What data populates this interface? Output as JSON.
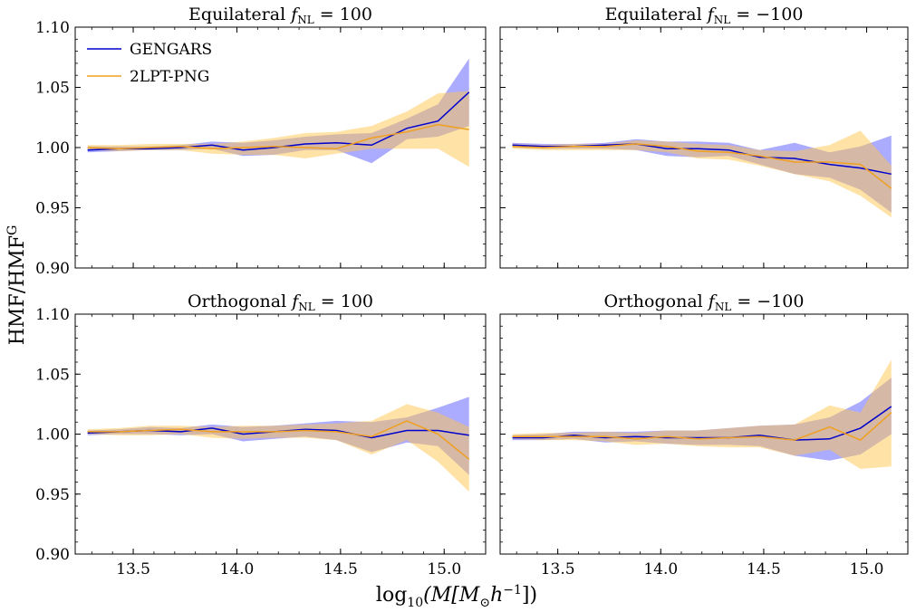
{
  "figure": {
    "ylabel": "HMF/HMF",
    "ylabel_sup": "G",
    "xlabel_prefix": "log",
    "xlabel_sub": "10",
    "xlabel_open": "(M[M",
    "xlabel_sun": "⊙",
    "xlabel_mid": "h",
    "xlabel_exp": "−1",
    "xlabel_close": "])"
  },
  "colors": {
    "gengars": "#0000cc",
    "gengars_band": "#6666ff",
    "lpt": "#f0a020",
    "lpt_band": "#ffc64d"
  },
  "legend": [
    {
      "name": "GENGARS",
      "color": "#0000cc"
    },
    {
      "name": "2LPT-PNG",
      "color": "#f0a020"
    }
  ],
  "chart_data": [
    {
      "type": "line",
      "title": "Equilateral  f_NL = 100",
      "title_main": "Equilateral",
      "title_f": "f",
      "title_sub": "NL",
      "title_eq": "= 100",
      "xlabel": "log10(M[M⊙h−1])",
      "ylabel": "HMF/HMF^G",
      "xlim": [
        13.22,
        15.2
      ],
      "ylim": [
        0.9,
        1.1
      ],
      "xticks": [
        13.5,
        14.0,
        14.5,
        15.0
      ],
      "xtick_labels": [
        "13.5",
        "14.0",
        "14.5",
        "15.0"
      ],
      "yticks": [
        0.9,
        0.95,
        1.0,
        1.05,
        1.1
      ],
      "ytick_labels": [
        "0.90",
        "0.95",
        "1.00",
        "1.05",
        "1.10"
      ],
      "x": [
        13.28,
        13.43,
        13.58,
        13.73,
        13.88,
        14.03,
        14.18,
        14.33,
        14.48,
        14.65,
        14.82,
        14.97,
        15.12
      ],
      "series": [
        {
          "name": "GENGARS",
          "values": [
            0.998,
            0.999,
            0.999,
            1.0,
            1.002,
            0.998,
            1.0,
            1.003,
            1.004,
            1.002,
            1.016,
            1.022,
            1.046
          ],
          "lower": [
            0.996,
            0.997,
            0.998,
            0.998,
            0.999,
            0.993,
            0.994,
            0.998,
            0.998,
            0.987,
            1.007,
            1.009,
            1.018
          ],
          "upper": [
            1.001,
            1.001,
            1.001,
            1.002,
            1.005,
            1.004,
            1.006,
            1.009,
            1.011,
            1.012,
            1.024,
            1.036,
            1.074
          ]
        },
        {
          "name": "2LPT-PNG",
          "values": [
            1.0,
            0.999,
            1.0,
            1.001,
            0.999,
            1.0,
            1.001,
            1.0,
            0.999,
            1.008,
            1.013,
            1.019,
            1.015
          ],
          "lower": [
            0.998,
            0.997,
            0.998,
            0.998,
            0.995,
            0.994,
            0.994,
            0.991,
            0.995,
            0.999,
            0.999,
            0.999,
            0.984
          ],
          "upper": [
            1.002,
            1.002,
            1.003,
            1.003,
            1.003,
            1.005,
            1.008,
            1.012,
            1.013,
            1.018,
            1.03,
            1.045,
            1.047
          ]
        }
      ]
    },
    {
      "type": "line",
      "title": "Equilateral  f_NL = −100",
      "title_main": "Equilateral",
      "title_f": "f",
      "title_sub": "NL",
      "title_eq": "= −100",
      "xlim": [
        13.22,
        15.2
      ],
      "ylim": [
        0.9,
        1.1
      ],
      "xticks": [
        13.5,
        14.0,
        14.5,
        15.0
      ],
      "xtick_labels": [
        "13.5",
        "14.0",
        "14.5",
        "15.0"
      ],
      "yticks": [
        0.9,
        0.95,
        1.0,
        1.05,
        1.1
      ],
      "x": [
        13.28,
        13.43,
        13.58,
        13.73,
        13.88,
        14.03,
        14.18,
        14.33,
        14.48,
        14.65,
        14.82,
        14.97,
        15.12
      ],
      "series": [
        {
          "name": "GENGARS",
          "values": [
            1.002,
            1.001,
            1.001,
            1.002,
            1.003,
            0.999,
            0.999,
            0.998,
            0.992,
            0.991,
            0.986,
            0.983,
            0.978
          ],
          "lower": [
            1.0,
            0.999,
            0.999,
            0.999,
            0.998,
            0.993,
            0.992,
            0.993,
            0.986,
            0.978,
            0.975,
            0.965,
            0.946
          ],
          "upper": [
            1.004,
            1.003,
            1.003,
            1.004,
            1.007,
            1.005,
            1.005,
            1.004,
            0.998,
            1.004,
            0.996,
            1.001,
            1.01
          ]
        },
        {
          "name": "2LPT-PNG",
          "values": [
            1.001,
            1.0,
            1.001,
            1.001,
            1.003,
            1.001,
            0.997,
            0.996,
            0.993,
            0.988,
            0.988,
            0.986,
            0.966
          ],
          "lower": [
            0.999,
            0.998,
            0.998,
            0.998,
            0.998,
            0.996,
            0.991,
            0.99,
            0.985,
            0.978,
            0.972,
            0.96,
            0.942
          ],
          "upper": [
            1.003,
            1.002,
            1.003,
            1.003,
            1.006,
            1.005,
            1.003,
            1.002,
            0.998,
            0.997,
            1.002,
            1.014,
            0.985
          ]
        }
      ]
    },
    {
      "type": "line",
      "title": "Orthogonal  f_NL = 100",
      "title_main": "Orthogonal",
      "title_f": "f",
      "title_sub": "NL",
      "title_eq": "= 100",
      "xlim": [
        13.22,
        15.2
      ],
      "ylim": [
        0.9,
        1.1
      ],
      "xticks": [
        13.5,
        14.0,
        14.5,
        15.0
      ],
      "xtick_labels": [
        "13.5",
        "14.0",
        "14.5",
        "15.0"
      ],
      "yticks": [
        0.9,
        0.95,
        1.0,
        1.05,
        1.1
      ],
      "ytick_labels": [
        "0.90",
        "0.95",
        "1.00",
        "1.05",
        "1.10"
      ],
      "x": [
        13.28,
        13.43,
        13.58,
        13.73,
        13.88,
        14.03,
        14.18,
        14.33,
        14.48,
        14.65,
        14.82,
        14.97,
        15.12
      ],
      "series": [
        {
          "name": "GENGARS",
          "values": [
            1.001,
            1.002,
            1.003,
            1.002,
            1.005,
            1.0,
            1.002,
            1.004,
            1.003,
            0.997,
            1.003,
            1.003,
            0.999
          ],
          "lower": [
            0.999,
            1.0,
            1.0,
            0.999,
            1.0,
            0.994,
            0.996,
            0.998,
            0.995,
            0.985,
            0.993,
            0.99,
            0.966
          ],
          "upper": [
            1.003,
            1.004,
            1.006,
            1.005,
            1.008,
            1.006,
            1.007,
            1.009,
            1.011,
            1.01,
            1.014,
            1.022,
            1.031
          ]
        },
        {
          "name": "2LPT-PNG",
          "values": [
            1.002,
            1.002,
            1.003,
            1.004,
            1.002,
            1.002,
            1.002,
            1.003,
            1.002,
            0.998,
            1.011,
            1.0,
            0.979
          ],
          "lower": [
            1.0,
            0.999,
            0.999,
            1.0,
            0.997,
            0.996,
            0.997,
            0.997,
            0.995,
            0.983,
            0.995,
            0.977,
            0.952
          ],
          "upper": [
            1.004,
            1.005,
            1.007,
            1.007,
            1.006,
            1.007,
            1.007,
            1.008,
            1.009,
            1.011,
            1.025,
            1.018,
            1.006
          ]
        }
      ]
    },
    {
      "type": "line",
      "title": "Orthogonal  f_NL = −100",
      "title_main": "Orthogonal",
      "title_f": "f",
      "title_sub": "NL",
      "title_eq": "= −100",
      "xlim": [
        13.22,
        15.2
      ],
      "ylim": [
        0.9,
        1.1
      ],
      "xticks": [
        13.5,
        14.0,
        14.5,
        15.0
      ],
      "xtick_labels": [
        "13.5",
        "14.0",
        "14.5",
        "15.0"
      ],
      "yticks": [
        0.9,
        0.95,
        1.0,
        1.05,
        1.1
      ],
      "x": [
        13.28,
        13.43,
        13.58,
        13.73,
        13.88,
        14.03,
        14.18,
        14.33,
        14.48,
        14.65,
        14.82,
        14.97,
        15.12
      ],
      "series": [
        {
          "name": "GENGARS",
          "values": [
            0.997,
            0.997,
            0.999,
            0.997,
            0.998,
            0.997,
            0.997,
            0.997,
            0.999,
            0.995,
            0.996,
            1.005,
            1.023
          ],
          "lower": [
            0.995,
            0.995,
            0.996,
            0.993,
            0.994,
            0.992,
            0.991,
            0.991,
            0.99,
            0.982,
            0.978,
            0.983,
            1.0
          ],
          "upper": [
            0.999,
            1.0,
            1.002,
            1.002,
            1.002,
            1.003,
            1.003,
            1.005,
            1.007,
            1.008,
            1.014,
            1.027,
            1.047
          ]
        },
        {
          "name": "2LPT-PNG",
          "values": [
            0.998,
            0.998,
            0.998,
            0.998,
            0.996,
            0.998,
            0.996,
            0.997,
            0.998,
            0.995,
            1.006,
            0.995,
            1.018
          ],
          "lower": [
            0.996,
            0.995,
            0.995,
            0.994,
            0.991,
            0.992,
            0.99,
            0.989,
            0.989,
            0.982,
            0.987,
            0.971,
            0.973
          ],
          "upper": [
            1.0,
            1.001,
            1.001,
            1.002,
            1.001,
            1.003,
            1.003,
            1.005,
            1.007,
            1.008,
            1.024,
            1.018,
            1.062
          ]
        }
      ]
    }
  ]
}
